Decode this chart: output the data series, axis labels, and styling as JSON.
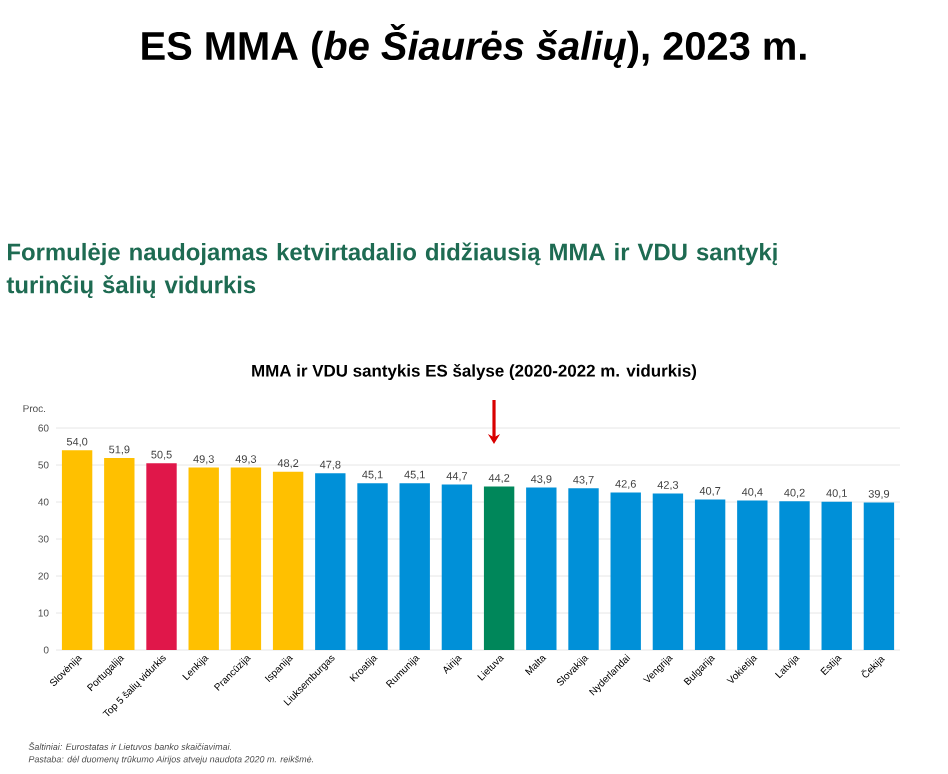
{
  "chart_data": {
    "type": "bar",
    "title": "ES MMA (*be Šiaurės šalių*), 2023 m.",
    "subtitle": "Formulėje naudojamas ketvirtadalio didžiausią MMA ir VDU santykį turinčių šalių vidurkis",
    "xlabel": "MMA ir VDU santykis ES šalyse (2020-2022 m. vidurkis)",
    "ylabel": "Proc.",
    "categories": [
      "Slovėnija",
      "Portugalija",
      "Top 5 šalių vidurkis",
      "Lenkija",
      "Prancūzija",
      "Ispanija",
      "Liuksemburgas",
      "Kroatija",
      "Rumunija",
      "Airija",
      "Lietuva",
      "Malta",
      "Slovakija",
      "Nyderlandai",
      "Vengrija",
      "Bulgarija",
      "Vokietija",
      "Latvija",
      "Estija",
      "Čekija"
    ],
    "values": [
      54.0,
      51.9,
      50.5,
      49.3,
      49.3,
      48.2,
      47.8,
      45.1,
      45.1,
      44.7,
      44.2,
      43.9,
      43.7,
      42.6,
      42.3,
      40.7,
      40.4,
      40.2,
      40.1,
      39.9
    ],
    "value_labels": [
      "54,0",
      "51,9",
      "50,5",
      "49,3",
      "49,3",
      "48,2",
      "47,8",
      "45,1",
      "45,1",
      "44,7",
      "44,2",
      "43,9",
      "43,7",
      "42,6",
      "42,3",
      "40,7",
      "40,4",
      "40,2",
      "40,1",
      "39,9"
    ],
    "colors": [
      "#ffc000",
      "#ffc000",
      "#e0174a",
      "#ffc000",
      "#ffc000",
      "#ffc000",
      "#0090d8",
      "#0090d8",
      "#0090d8",
      "#0090d8",
      "#00875a",
      "#0090d8",
      "#0090d8",
      "#0090d8",
      "#0090d8",
      "#0090d8",
      "#0090d8",
      "#0090d8",
      "#0090d8",
      "#0090d8"
    ],
    "ylim": [
      0,
      60
    ],
    "yticks": [
      0,
      10,
      20,
      30,
      40,
      50,
      60
    ],
    "grid": "y",
    "annotations": [
      "Šaltiniai: Eurostatas ir Lietuvos banko skaičiavimai.",
      "Pastaba: dėl duomenų trūkumo Airijos atveju naudota 2020 m. reikšmė."
    ]
  }
}
